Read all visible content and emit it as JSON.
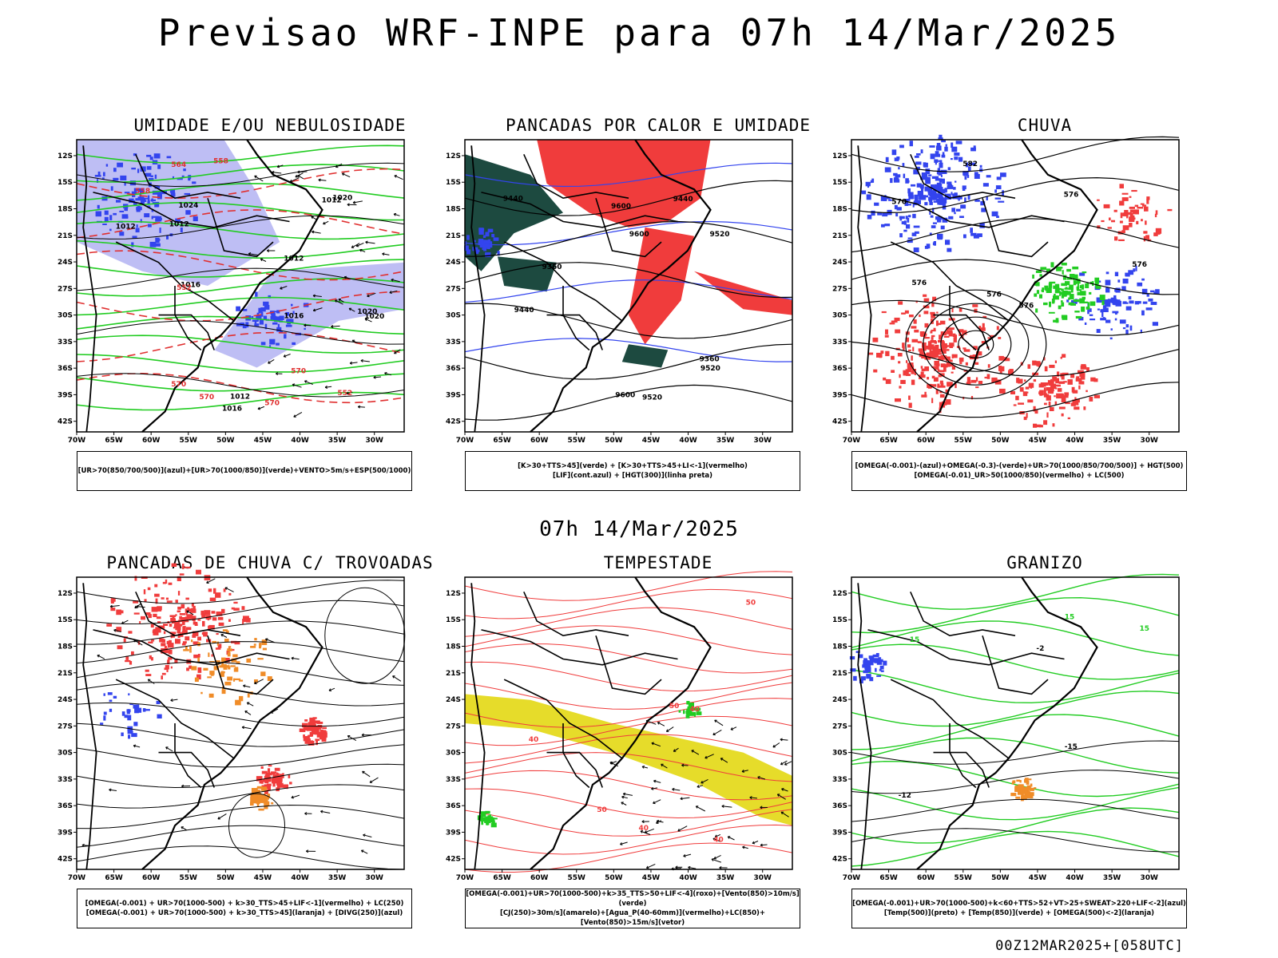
{
  "title": "Previsao WRF-INPE  para 07h 14/Mar/2025",
  "subtitle": "07h 14/Mar/2025",
  "footer": "00Z12MAR2025+[058UTC]",
  "axes": {
    "lat_labels": [
      "12S",
      "15S",
      "18S",
      "21S",
      "24S",
      "27S",
      "30S",
      "33S",
      "36S",
      "39S",
      "42S"
    ],
    "lon_labels": [
      "70W",
      "65W",
      "60W",
      "55W",
      "50W",
      "45W",
      "40W",
      "35W",
      "30W"
    ]
  },
  "colors": {
    "blue": "#3344ee",
    "lavender": "#a8a8f0",
    "green": "#22cc22",
    "red": "#f03c3c",
    "darkgreen": "#1d4a40",
    "yellow": "#e6dc2a",
    "orange": "#f08c28"
  },
  "panels": [
    {
      "title": "UMIDADE E/OU NEBULOSIDADE",
      "legend": [
        "[UR>70(850/700/500)](azul)+[UR>70(1000/850)](verde)+VENTO>5m/s+ESP(500/1000)"
      ],
      "labels": [
        "1012",
        "1012",
        "1012",
        "1012",
        "1012",
        "1016",
        "1016",
        "1016",
        "1020",
        "1020",
        "1020",
        "1024",
        "570",
        "570",
        "570",
        "570",
        "564",
        "558",
        "552",
        "552",
        "558"
      ]
    },
    {
      "title": "PANCADAS POR CALOR E UMIDADE",
      "legend": [
        "[K>30+TTS>45](verde) + [K>30+TTS>45+LI<-1](vermelho)",
        "[LIF](cont.azul) + [HGT(300)](linha preta)"
      ],
      "labels": [
        "9600",
        "9520",
        "9440",
        "9520",
        "9600",
        "9600",
        "9520",
        "9440",
        "9360",
        "9440",
        "9360"
      ]
    },
    {
      "title": "CHUVA",
      "legend": [
        "[OMEGA(-0.001)-(azul)+OMEGA(-0.3)-(verde)+UR>70(1000/850/700/500)] + HGT(500)",
        "[OMEGA(-0.01)_UR>50(1000/850)(vermelho) + LC(500)"
      ],
      "labels": [
        "582",
        "576",
        "576",
        "576",
        "576",
        "576",
        "570"
      ]
    },
    {
      "title": "PANCADAS DE CHUVA C/ TROVOADAS",
      "legend": [
        "[OMEGA(-0.001) + UR>70(1000-500) + k>30_TTS>45+LIF<-1](vermelho) + LC(250)",
        "[OMEGA(-0.001) + UR>70(1000-500) + k>30_TTS>45](laranja) + [DIVG(250)](azul)"
      ],
      "labels": []
    },
    {
      "title": "TEMPESTADE",
      "legend": [
        "[OMEGA(-0.001)+UR>70(1000-500)+k>35_TTS>50+LIF<-4](roxo)+[Vento(850)>10m/s](verde)",
        "[CJ(250)>30m/s](amarelo)+[Agua_P(40-60mm)](vermelho)+LC(850)+[Vento(850)>15m/s](vetor)"
      ],
      "labels": [
        "50",
        "40",
        "40",
        "50",
        "40",
        "50",
        "40"
      ]
    },
    {
      "title": "GRANIZO",
      "legend": [
        "[OMEGA(-0.001)+UR>70(1000-500)+k<60+TTS>52+VT>25+SWEAT>220+LIF<-2](azul)",
        "[Temp(500)](preto) + [Temp(850)](verde) + [OMEGA(500)<-2](laranja)"
      ],
      "labels": [
        "15",
        "15",
        "15",
        "-12",
        "-15",
        "-2"
      ]
    }
  ]
}
